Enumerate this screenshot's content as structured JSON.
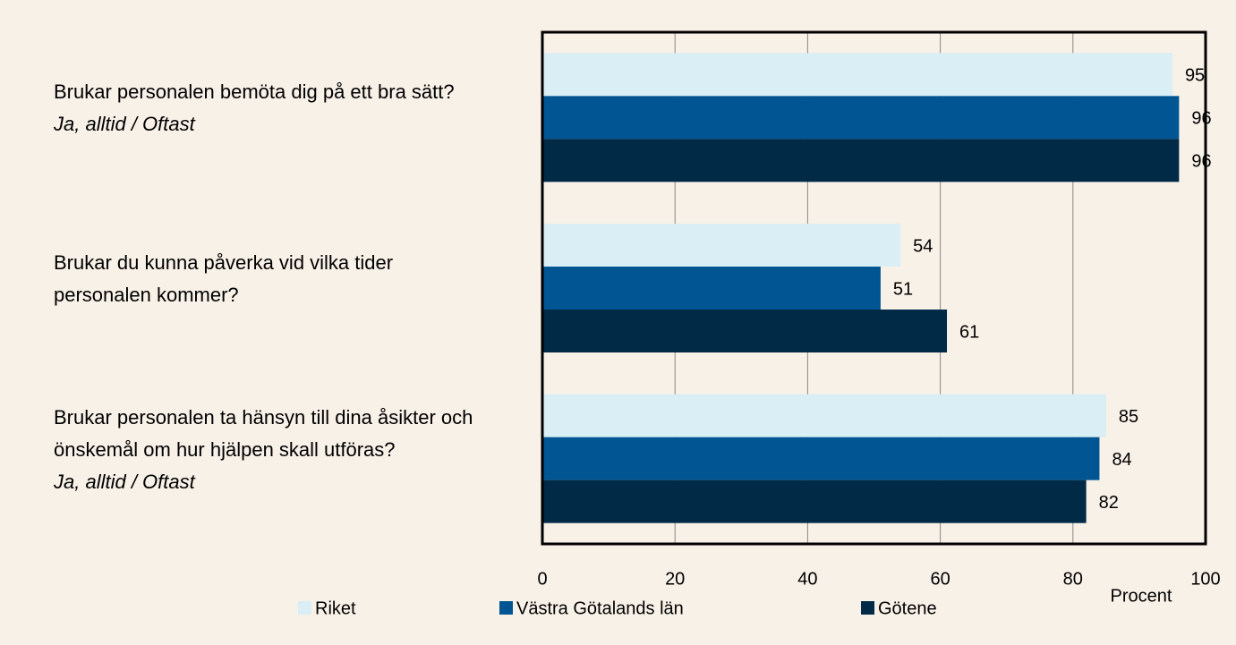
{
  "chart_data": {
    "type": "hbar",
    "categories": [
      "Brukar personalen bemöta dig på ett bra sätt?",
      "Brukar du kunna påverka vid vilka tider personalen kommer?",
      "Brukar personalen ta hänsyn till dina åsikter och önskemål om hur hjälpen skall utföras?"
    ],
    "category_notes": [
      "Ja, alltid / Oftast",
      null,
      "Ja, alltid / Oftast"
    ],
    "series": [
      {
        "name": "Riket",
        "color": "#d9eef5",
        "values": [
          95,
          54,
          85
        ]
      },
      {
        "name": "Västra Götalands län",
        "color": "#005592",
        "values": [
          96,
          51,
          84
        ]
      },
      {
        "name": "Götene",
        "color": "#002a45",
        "values": [
          96,
          61,
          82
        ]
      }
    ],
    "x_label": "Procent",
    "xlim": [
      0,
      100
    ],
    "xticks": [
      0,
      20,
      40,
      60,
      80,
      100
    ],
    "grid": true,
    "legend": "bottom"
  }
}
